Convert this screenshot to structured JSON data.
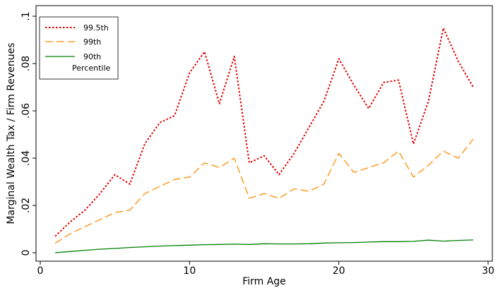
{
  "chart_data": {
    "type": "line",
    "title": "",
    "xlabel": "Firm Age",
    "ylabel": "Marginal Wealth Tax / Firm Revenues",
    "xlim": [
      0,
      30
    ],
    "ylim": [
      0,
      0.1
    ],
    "xticks": [
      0,
      10,
      20,
      30
    ],
    "xtick_labels": [
      "0",
      "10",
      "20",
      "30"
    ],
    "yticks": [
      0,
      0.02,
      0.04,
      0.06,
      0.08,
      0.1
    ],
    "ytick_labels": [
      "0",
      ".02",
      ".04",
      ".06",
      ".08",
      ".1"
    ],
    "grid": false,
    "legend_position": "top-left",
    "legend_subtitle": "Percentile",
    "x": [
      1,
      2,
      3,
      4,
      5,
      6,
      7,
      8,
      9,
      10,
      11,
      12,
      13,
      14,
      15,
      16,
      17,
      18,
      19,
      20,
      21,
      22,
      23,
      24,
      25,
      26,
      27,
      28,
      29
    ],
    "series": [
      {
        "name": "99.5th",
        "color": "#e00000",
        "dash": "dotted",
        "values": [
          0.007,
          0.013,
          0.018,
          0.025,
          0.033,
          0.029,
          0.046,
          0.055,
          0.058,
          0.076,
          0.085,
          0.063,
          0.083,
          0.038,
          0.041,
          0.033,
          0.042,
          0.053,
          0.064,
          0.082,
          0.071,
          0.061,
          0.072,
          0.073,
          0.046,
          0.064,
          0.095,
          0.081,
          0.07
        ]
      },
      {
        "name": "99th",
        "color": "#ff8c00",
        "dash": "dashed",
        "values": [
          0.004,
          0.008,
          0.011,
          0.014,
          0.017,
          0.018,
          0.025,
          0.028,
          0.031,
          0.032,
          0.038,
          0.036,
          0.04,
          0.023,
          0.025,
          0.023,
          0.027,
          0.026,
          0.029,
          0.042,
          0.034,
          0.036,
          0.038,
          0.043,
          0.032,
          0.037,
          0.043,
          0.04,
          0.048
        ]
      },
      {
        "name": "90th",
        "color": "#008000",
        "dash": "solid",
        "values": [
          0.0,
          0.0005,
          0.001,
          0.0015,
          0.0018,
          0.0022,
          0.0025,
          0.0028,
          0.003,
          0.0032,
          0.0034,
          0.0035,
          0.0036,
          0.0035,
          0.0038,
          0.0037,
          0.0037,
          0.0038,
          0.0041,
          0.0042,
          0.0043,
          0.0045,
          0.0047,
          0.0047,
          0.0048,
          0.0053,
          0.0049,
          0.0052,
          0.0054
        ]
      }
    ]
  }
}
